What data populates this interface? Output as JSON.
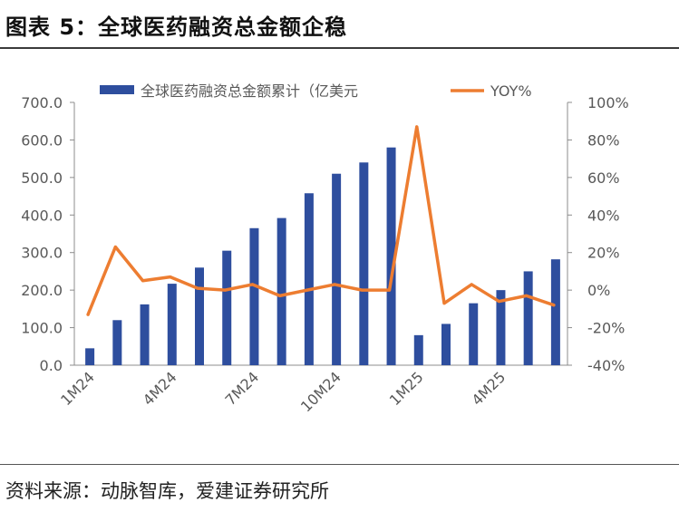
{
  "figure": {
    "title": "图表 5：全球医药融资总金额企稳",
    "source": "资料来源：动脉智库，爱建证券研究所"
  },
  "chart_data": {
    "type": "bar+line",
    "categories": [
      "1M24",
      "2M24",
      "3M24",
      "4M24",
      "5M24",
      "6M24",
      "7M24",
      "8M24",
      "9M24",
      "10M24",
      "11M24",
      "12M24",
      "1M25",
      "2M25",
      "3M25",
      "4M25",
      "5M25",
      "6M25"
    ],
    "x_tick_labels": [
      "1M24",
      "4M24",
      "7M24",
      "10M24",
      "1M25",
      "4M25"
    ],
    "x_tick_indices": [
      0,
      3,
      6,
      9,
      12,
      15
    ],
    "series": [
      {
        "name": "全球医药融资总金额累计（亿美元",
        "type": "bar",
        "axis": "left",
        "color": "#2E4E9E",
        "values": [
          45,
          120,
          162,
          217,
          260,
          305,
          365,
          392,
          458,
          510,
          540,
          580,
          80,
          110,
          165,
          200,
          250,
          282
        ]
      },
      {
        "name": "YOY%",
        "type": "line",
        "axis": "right",
        "color": "#ED7D31",
        "values": [
          -13,
          23,
          5,
          7,
          1,
          0,
          3,
          -3,
          0,
          3,
          0,
          0,
          87,
          -7,
          3,
          -6,
          -3,
          -8
        ]
      }
    ],
    "y_left": {
      "min": 0,
      "max": 700,
      "step": 100,
      "tick_labels": [
        "0.0",
        "100.0",
        "200.0",
        "300.0",
        "400.0",
        "500.0",
        "600.0",
        "700.0"
      ]
    },
    "y_right": {
      "min": -40,
      "max": 100,
      "step": 20,
      "tick_labels": [
        "-40%",
        "-20%",
        "0%",
        "20%",
        "40%",
        "60%",
        "80%",
        "100%"
      ]
    },
    "legend_position": "top"
  }
}
